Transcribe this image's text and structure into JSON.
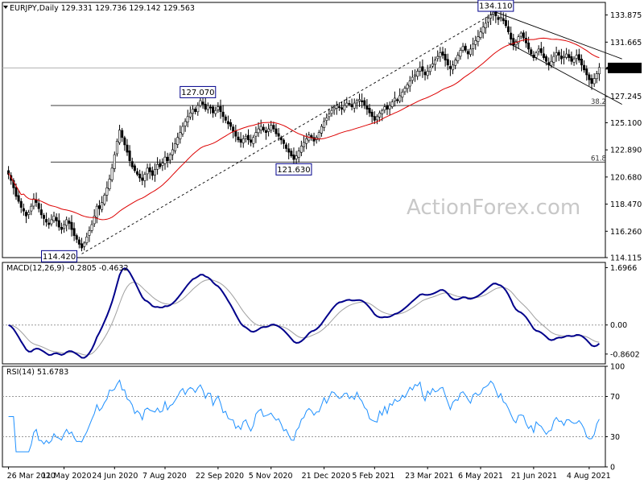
{
  "watermark": "ActionForex.com",
  "chart_data": [
    {
      "type": "candlestick",
      "panel": "price",
      "title": "EURJPY,Daily",
      "ohlc_text": "129.331 129.736 129.142 129.563",
      "last_price": "129.563",
      "ylim": [
        114.115,
        134.9
      ],
      "y_ticks": [
        "133.875",
        "131.665",
        "129.470",
        "127.245",
        "125.100",
        "122.890",
        "120.680",
        "118.470",
        "116.260",
        "114.115"
      ],
      "x_ticks": [
        "26 Mar 2020",
        "11 May 2020",
        "24 Jun 2020",
        "7 Aug 2020",
        "22 Sep 2020",
        "5 Nov 2020",
        "21 Dec 2020",
        "5 Feb 2021",
        "23 Mar 2021",
        "6 May 2021",
        "21 Jun 2021",
        "4 Aug 2021"
      ],
      "grid": false,
      "closes": [
        120.9,
        120.4,
        119.8,
        119.1,
        118.7,
        118.2,
        117.9,
        117.5,
        117.8,
        118.3,
        118.9,
        118.6,
        118.1,
        117.6,
        117.3,
        117.0,
        116.8,
        117.2,
        117.5,
        117.1,
        116.6,
        116.4,
        116.8,
        117.2,
        116.9,
        116.4,
        115.9,
        115.6,
        115.2,
        114.9,
        115.3,
        115.8,
        116.3,
        116.8,
        117.5,
        118.3,
        118.1,
        118.6,
        119.2,
        119.8,
        120.5,
        121.4,
        122.5,
        123.6,
        124.5,
        123.9,
        123.3,
        122.7,
        122.0,
        121.5,
        121.2,
        120.9,
        120.6,
        120.4,
        120.9,
        121.4,
        121.1,
        120.8,
        121.3,
        121.7,
        121.5,
        121.8,
        122.3,
        122.0,
        122.5,
        122.9,
        123.4,
        123.9,
        124.3,
        124.8,
        125.2,
        125.6,
        125.9,
        126.2,
        126.0,
        126.5,
        126.9,
        126.6,
        126.2,
        126.5,
        126.3,
        125.9,
        126.1,
        126.4,
        126.0,
        125.6,
        125.3,
        125.0,
        124.8,
        124.4,
        124.0,
        123.7,
        123.5,
        123.8,
        124.0,
        123.7,
        123.5,
        123.9,
        124.3,
        124.6,
        124.8,
        124.5,
        124.3,
        124.6,
        124.9,
        124.6,
        124.2,
        124.0,
        123.7,
        123.4,
        123.0,
        122.7,
        122.4,
        122.1,
        122.4,
        122.8,
        123.2,
        123.5,
        123.8,
        124.1,
        123.9,
        123.6,
        123.9,
        124.3,
        124.8,
        125.2,
        125.5,
        125.8,
        126.1,
        126.3,
        126.5,
        126.4,
        126.2,
        126.5,
        126.7,
        126.6,
        126.4,
        126.7,
        126.9,
        127.0,
        126.8,
        126.5,
        126.2,
        125.9,
        125.6,
        125.3,
        125.6,
        125.9,
        126.1,
        126.4,
        126.2,
        126.5,
        126.8,
        127.1,
        126.9,
        127.3,
        127.6,
        127.9,
        128.2,
        128.5,
        128.8,
        129.0,
        129.3,
        129.6,
        129.3,
        129.0,
        129.3,
        129.6,
        129.9,
        130.2,
        130.5,
        130.8,
        130.6,
        130.2,
        129.8,
        129.5,
        129.8,
        130.2,
        130.6,
        131.0,
        131.3,
        131.0,
        130.7,
        131.1,
        131.5,
        131.8,
        132.1,
        132.5,
        132.9,
        133.2,
        133.6,
        133.9,
        134.1,
        133.8,
        133.5,
        133.7,
        133.4,
        133.0,
        132.5,
        131.9,
        131.4,
        131.7,
        132.1,
        132.4,
        132.0,
        131.6,
        131.1,
        130.7,
        130.4,
        130.8,
        131.1,
        130.8,
        130.4,
        130.1,
        129.8,
        130.1,
        130.5,
        130.8,
        130.6,
        130.3,
        130.5,
        130.7,
        130.4,
        130.1,
        130.3,
        130.6,
        130.2,
        129.8,
        129.4,
        129.0,
        128.6,
        128.3,
        128.7,
        129.1,
        129.6
      ],
      "moving_average": "red line",
      "horizontal_lines": [
        {
          "name": "price-line",
          "value": 129.563
        },
        {
          "name": "fib-38.2",
          "value": 126.5,
          "label": "38.2"
        },
        {
          "name": "fib-61.8",
          "value": 121.9,
          "label": "61.8"
        }
      ],
      "annotations": [
        {
          "name": "high-label",
          "text": "134.110",
          "index": 193,
          "value": 134.11
        },
        {
          "name": "label-127070",
          "text": "127.070",
          "index": 75,
          "value": 127.07
        },
        {
          "name": "label-121630",
          "text": "121.630",
          "index": 113,
          "value": 121.63
        },
        {
          "name": "low-label",
          "text": "114.420",
          "index": 29,
          "value": 114.42
        }
      ],
      "trendlines": [
        {
          "name": "up-channel-lower",
          "from": [
            29,
            114.42
          ],
          "to": [
            193,
            134.11
          ],
          "style": "dashed"
        },
        {
          "name": "down-channel-upper",
          "from": [
            193,
            134.11
          ],
          "to": [
            243,
            130.3
          ],
          "style": "solid"
        },
        {
          "name": "down-channel-lower",
          "from": [
            198,
            131.6
          ],
          "to": [
            243,
            126.6
          ],
          "style": "solid"
        }
      ]
    },
    {
      "type": "line",
      "panel": "macd",
      "title": "MACD(12,26,9) -0.2805 -0.4632",
      "ylim": [
        -1.15,
        1.85
      ],
      "y_ticks": [
        "1.6966",
        "0.00",
        "-0.8602"
      ],
      "zero_line": 0,
      "series": [
        {
          "name": "MACD",
          "color": "#00008b"
        },
        {
          "name": "Signal",
          "color": "#a0a0a0"
        }
      ]
    },
    {
      "type": "line",
      "panel": "rsi",
      "title": "RSI(14) 51.6783",
      "ylim": [
        0,
        100
      ],
      "y_ticks": [
        "100",
        "70",
        "30",
        "0"
      ],
      "levels": [
        70,
        30
      ],
      "series": [
        {
          "name": "RSI",
          "color": "#1e90ff"
        }
      ]
    }
  ],
  "colors": {
    "candle": "#000000",
    "ma": "#dd0000",
    "macd": "#00008b",
    "signal": "#a0a0a0",
    "rsi": "#1e90ff",
    "boxes": "#00008b"
  }
}
